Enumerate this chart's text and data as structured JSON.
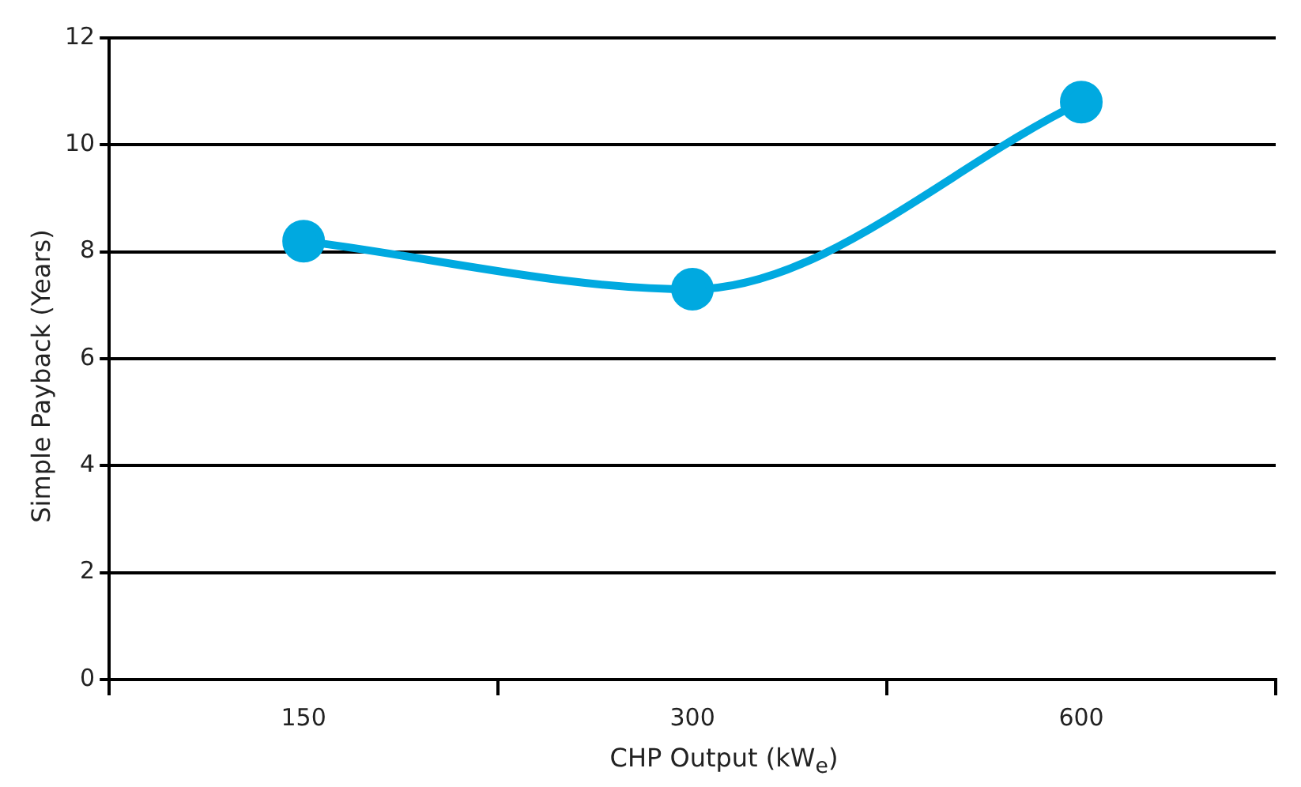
{
  "chart_data": {
    "type": "line",
    "xlabel": "CHP Output (kW$_{e}$)",
    "ylabel": "Simple Payback (Years)",
    "categories": [
      "150",
      "300",
      "600"
    ],
    "series": [
      {
        "color": "#00a9e0",
        "values": [
          8.2,
          7.3,
          10.8
        ]
      }
    ],
    "ylim": [
      0,
      12
    ],
    "yticks": [
      0,
      2,
      4,
      6,
      8,
      10,
      12
    ],
    "grid": "y",
    "legend": false,
    "marker": "circle"
  }
}
